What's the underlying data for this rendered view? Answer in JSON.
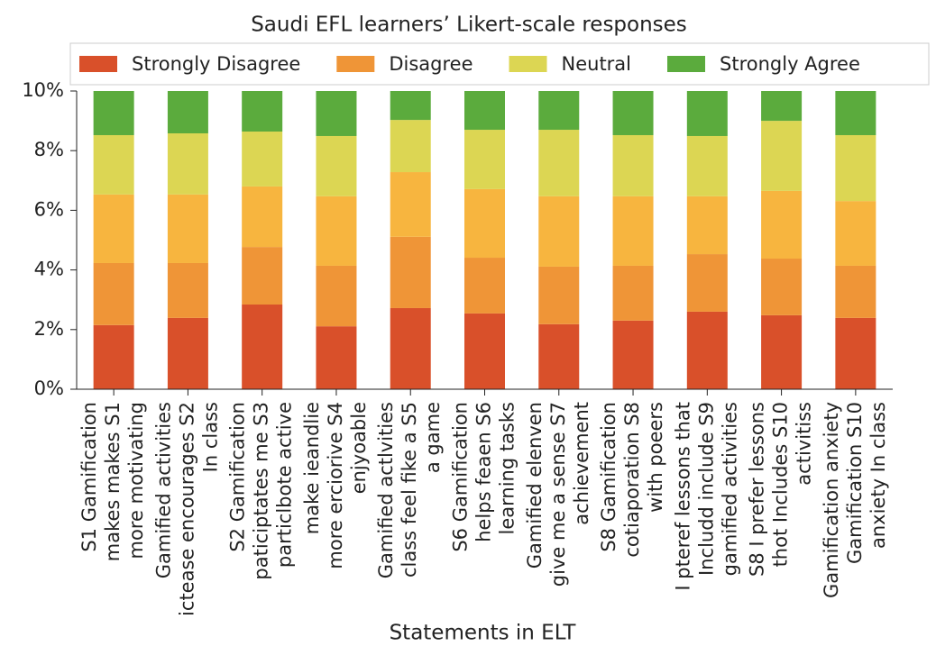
{
  "chart_data": {
    "type": "stacked_bar",
    "title": "Saudi EFL learners’ Likert-scale responses",
    "x_label": "Statements in ELT",
    "categories": [
      "S1 Gamification\nmakes makes  S1\nmore motivating",
      "Gamified activities\nictease encourages  S2\nIn class",
      "S2 Gamification\npaticiptates me  S3\nparticlbote active",
      "make ieandlie\nmore erciorive  S4\nenjyoable",
      "Gamified actlvities\nclass feel fike a  S5\na game",
      "S6 Gamification\nhelps feaen  S6\nlearning tasks",
      "Gamified elenven\ngive me a sense  S7\nachievement",
      "S8 Gamification\ncotiaporation  S8\nwith poeers",
      "I pteref lessons that\nIncludd include  S9\ngamified activities",
      "S8 I prefer lessons\nthot Includes  S10\nactivitiss",
      "Gamification anxiety\nGamification S10\nanxiety In class"
    ],
    "series": [
      {
        "name": "Strongly Disagree",
        "color": "#d9502a",
        "values": [
          2.15,
          2.39,
          2.84,
          2.11,
          2.72,
          2.54,
          2.18,
          2.3,
          2.6,
          2.48,
          2.39
        ]
      },
      {
        "name": "Disagree",
        "color": "#ef9537",
        "values": [
          2.08,
          1.84,
          1.93,
          2.03,
          2.39,
          1.87,
          1.93,
          1.84,
          1.93,
          1.9,
          1.75
        ]
      },
      {
        "color": "#f7b53f",
        "values": [
          2.3,
          2.3,
          2.03,
          2.33,
          2.17,
          2.3,
          2.36,
          2.33,
          1.94,
          2.27,
          2.17
        ]
      },
      {
        "name": "Neutral",
        "color": "#dcd653",
        "values": [
          1.99,
          2.05,
          1.84,
          2.02,
          1.75,
          1.99,
          2.23,
          2.05,
          2.02,
          2.35,
          2.21
        ]
      },
      {
        "name": "Strongly Agree",
        "color": "#5bab3d",
        "values": [
          1.48,
          1.42,
          1.36,
          1.51,
          0.97,
          1.3,
          1.3,
          1.48,
          1.51,
          1.0,
          1.48
        ]
      }
    ],
    "ylim": [
      0,
      10
    ],
    "yticks": [
      {
        "value": 0,
        "label": "0%"
      },
      {
        "value": 2,
        "label": "2%"
      },
      {
        "value": 4,
        "label": "4%"
      },
      {
        "value": 6,
        "label": "6%"
      },
      {
        "value": 8,
        "label": "8%"
      },
      {
        "value": 10,
        "label": "10%"
      }
    ],
    "legend": "top"
  }
}
